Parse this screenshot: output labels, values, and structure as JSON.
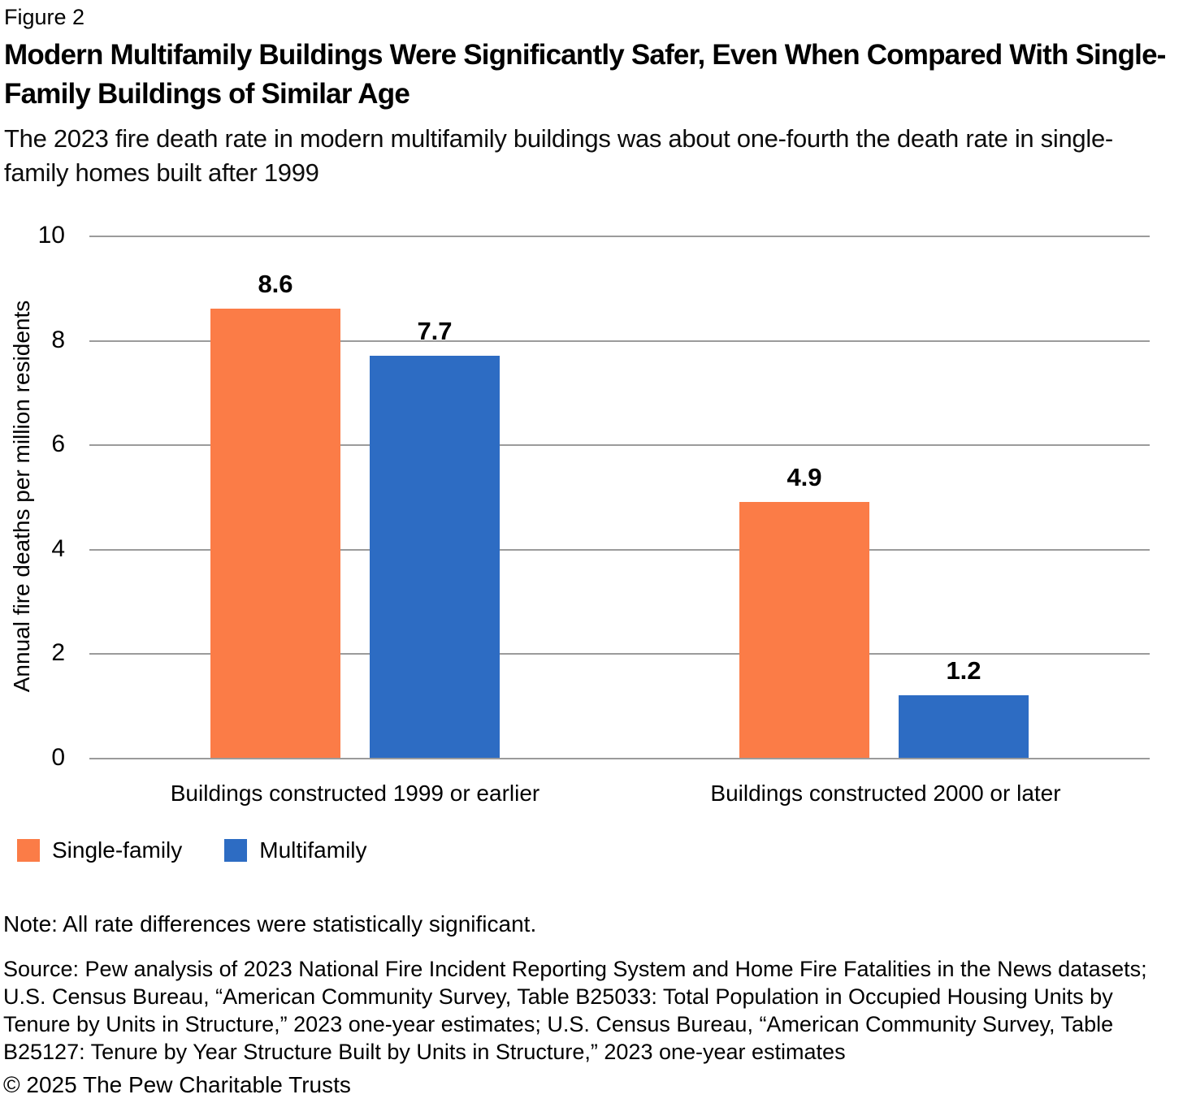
{
  "figure_label": "Figure 2",
  "title": "Modern Multifamily Buildings Were Significantly Safer, Even When Compared With Single-Family Buildings of Similar Age",
  "subtitle": "The 2023 fire death rate in modern multifamily buildings was about one-fourth the death rate in single-family homes built after 1999",
  "note": "Note: All rate differences were statistically significant.",
  "source": "Source: Pew analysis of 2023 National Fire Incident Reporting System and Home Fire Fatalities in the News datasets; U.S. Census Bureau, “American Community Survey, Table B25033: Total Population in Occupied Housing Units by Tenure by Units in Structure,” 2023 one-year estimates; U.S. Census Bureau, “American Community Survey, Table B25127: Tenure by Year Structure Built by Units in Structure,” 2023 one-year estimates",
  "copyright": "© 2025 The Pew Charitable Trusts",
  "colors": {
    "single_family": "#FB7C47",
    "multifamily": "#2D6CC3",
    "gridline": "#9B9B9B"
  },
  "chart_data": {
    "type": "bar",
    "categories": [
      "Buildings constructed 1999 or earlier",
      "Buildings constructed 2000 or later"
    ],
    "series": [
      {
        "name": "Single-family",
        "color": "#FB7C47",
        "values": [
          8.6,
          4.9
        ]
      },
      {
        "name": "Multifamily",
        "color": "#2D6CC3",
        "values": [
          7.7,
          1.2
        ]
      }
    ],
    "title": "Modern Multifamily Buildings Were Significantly Safer, Even When Compared With Single-Family Buildings of Similar Age",
    "xlabel": "",
    "ylabel": "Annual fire deaths per million residents",
    "ylim": [
      0,
      10
    ],
    "yticks": [
      10,
      8,
      6,
      4,
      2,
      0
    ],
    "grid": true,
    "legend_position": "bottom-left"
  }
}
